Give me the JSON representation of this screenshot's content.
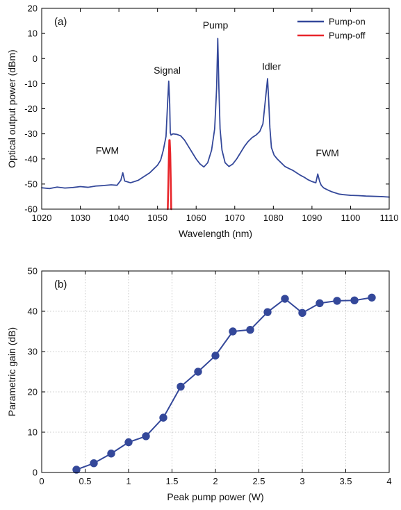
{
  "chart_data": [
    {
      "panel": "(a)",
      "type": "line",
      "xlabel": "Wavelength (nm)",
      "ylabel": "Optical output power (dBm)",
      "xlim": [
        1020,
        1110
      ],
      "ylim": [
        -60,
        20
      ],
      "xticks": [
        1020,
        1030,
        1040,
        1050,
        1060,
        1070,
        1080,
        1090,
        1100,
        1110
      ],
      "yticks": [
        -60,
        -50,
        -40,
        -30,
        -20,
        -10,
        0,
        10,
        20
      ],
      "grid": false,
      "legend_position": "top-right",
      "annotations": [
        {
          "text": "FWM",
          "x": 1037,
          "y": -38
        },
        {
          "text": "Signal",
          "x": 1052.5,
          "y": -6
        },
        {
          "text": "Pump",
          "x": 1065,
          "y": 12
        },
        {
          "text": "Idler",
          "x": 1079.5,
          "y": -4.5
        },
        {
          "text": "FWM",
          "x": 1094,
          "y": -39
        }
      ],
      "series": [
        {
          "name": "Pump-on",
          "color": "#34489a",
          "x": [
            1020,
            1022,
            1024,
            1026,
            1028,
            1030,
            1032,
            1034,
            1036,
            1038,
            1039.5,
            1040.5,
            1041,
            1041.5,
            1043,
            1045,
            1046,
            1047,
            1048,
            1049,
            1050,
            1050.8,
            1051.5,
            1052.2,
            1052.6,
            1052.9,
            1053.15,
            1053.3,
            1053.5,
            1054,
            1055,
            1056,
            1057,
            1058,
            1059,
            1060,
            1061,
            1062,
            1063,
            1064,
            1064.8,
            1065.3,
            1065.6,
            1065.9,
            1066.2,
            1066.7,
            1067.5,
            1068.5,
            1069.5,
            1070.5,
            1071.5,
            1072.5,
            1073.5,
            1074.5,
            1075.5,
            1076.5,
            1077.3,
            1077.9,
            1078.5,
            1078.8,
            1079.1,
            1079.5,
            1080.2,
            1081,
            1082,
            1083,
            1084,
            1085,
            1086,
            1087,
            1088,
            1089,
            1090,
            1091,
            1091.5,
            1092,
            1092.4,
            1093,
            1094,
            1095,
            1096,
            1097,
            1098,
            1100,
            1102,
            1104,
            1106,
            1108,
            1110
          ],
          "y": [
            -51.5,
            -51.8,
            -51.2,
            -51.6,
            -51.4,
            -51.0,
            -51.3,
            -50.8,
            -50.6,
            -50.3,
            -50.5,
            -48.5,
            -45.5,
            -48.8,
            -49.5,
            -48.5,
            -47.5,
            -46.5,
            -45.5,
            -44.0,
            -42.5,
            -40.5,
            -36.5,
            -31.0,
            -18.0,
            -9.0,
            -18.0,
            -29.5,
            -30.5,
            -30.0,
            -30.2,
            -30.8,
            -32.5,
            -35.0,
            -37.5,
            -40.0,
            -42.0,
            -43.2,
            -41.5,
            -36.5,
            -28.0,
            -12.0,
            8.0,
            -12.0,
            -28.0,
            -36.5,
            -41.5,
            -43.0,
            -42.0,
            -40.0,
            -37.5,
            -35.0,
            -33.0,
            -31.5,
            -30.5,
            -29.0,
            -26.0,
            -17.0,
            -8.0,
            -17.0,
            -27.5,
            -35.5,
            -38.5,
            -40.0,
            -41.5,
            -43.0,
            -43.8,
            -44.5,
            -45.5,
            -46.5,
            -47.3,
            -48.3,
            -49.0,
            -49.5,
            -46.0,
            -49.0,
            -50.5,
            -51.5,
            -52.3,
            -53.0,
            -53.5,
            -54.0,
            -54.2,
            -54.5,
            -54.6,
            -54.8,
            -54.9,
            -55.0,
            -55.2
          ]
        },
        {
          "name": "Pump-off",
          "color": "#e8262b",
          "x": [
            1052.65,
            1052.8,
            1052.95,
            1053.05,
            1053.15,
            1053.3,
            1053.45,
            1053.55
          ],
          "y": [
            -60,
            -50,
            -38,
            -32.5,
            -32.5,
            -38,
            -50,
            -60
          ]
        }
      ]
    },
    {
      "panel": "(b)",
      "type": "line",
      "xlabel": "Peak pump power (W)",
      "ylabel": "Parametric gain (dB)",
      "xlim": [
        0,
        4
      ],
      "ylim": [
        0,
        50
      ],
      "xticks": [
        "0",
        "0.5",
        "1",
        "1.5",
        "2",
        "2.5",
        "3",
        "3.5",
        "4"
      ],
      "yticks": [
        0,
        10,
        20,
        30,
        40,
        50
      ],
      "grid": true,
      "series": [
        {
          "color": "#34489a",
          "marker": "circle",
          "x": [
            0.4,
            0.6,
            0.8,
            1.0,
            1.2,
            1.4,
            1.6,
            1.8,
            2.0,
            2.2,
            2.4,
            2.6,
            2.8,
            3.0,
            3.2,
            3.4,
            3.6,
            3.8
          ],
          "y": [
            0.7,
            2.3,
            4.7,
            7.5,
            9.0,
            13.6,
            21.3,
            25.0,
            29.0,
            35.0,
            35.4,
            39.8,
            43.1,
            39.6,
            42.0,
            42.6,
            42.7,
            43.4
          ]
        }
      ]
    }
  ]
}
